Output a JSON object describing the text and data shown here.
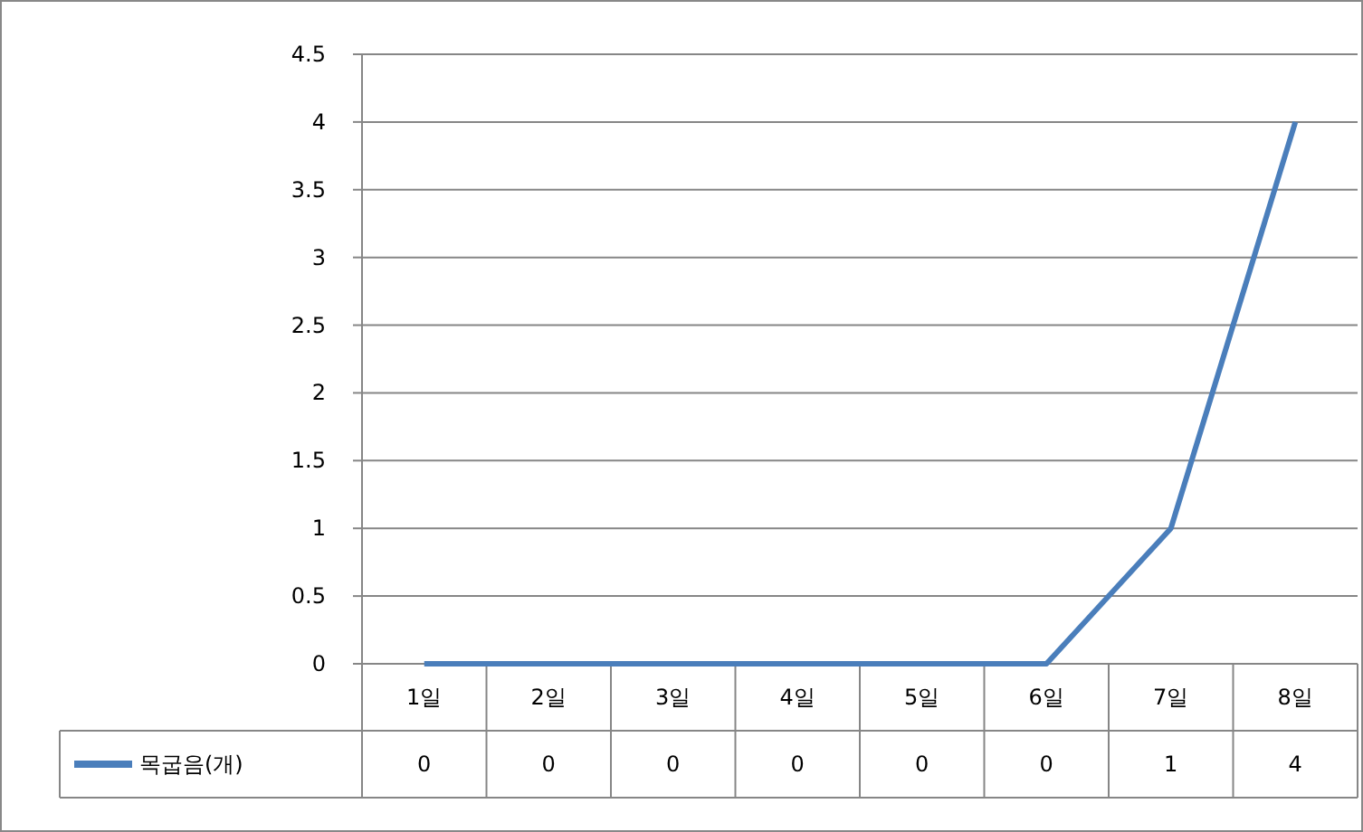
{
  "chart_data": {
    "type": "line",
    "categories": [
      "1일",
      "2일",
      "3일",
      "4일",
      "5일",
      "6일",
      "7일",
      "8일"
    ],
    "series": [
      {
        "name": "목굽음(개)",
        "color": "#4a7ebb",
        "values": [
          0,
          0,
          0,
          0,
          0,
          0,
          1,
          4
        ]
      }
    ],
    "ylim": [
      0,
      4.5
    ],
    "yticks": [
      0,
      0.5,
      1,
      1.5,
      2,
      2.5,
      3,
      3.5,
      4,
      4.5
    ],
    "grid": "y",
    "legend": "bottom left",
    "data_labels": true,
    "marker": "none",
    "line_style": "solid"
  }
}
